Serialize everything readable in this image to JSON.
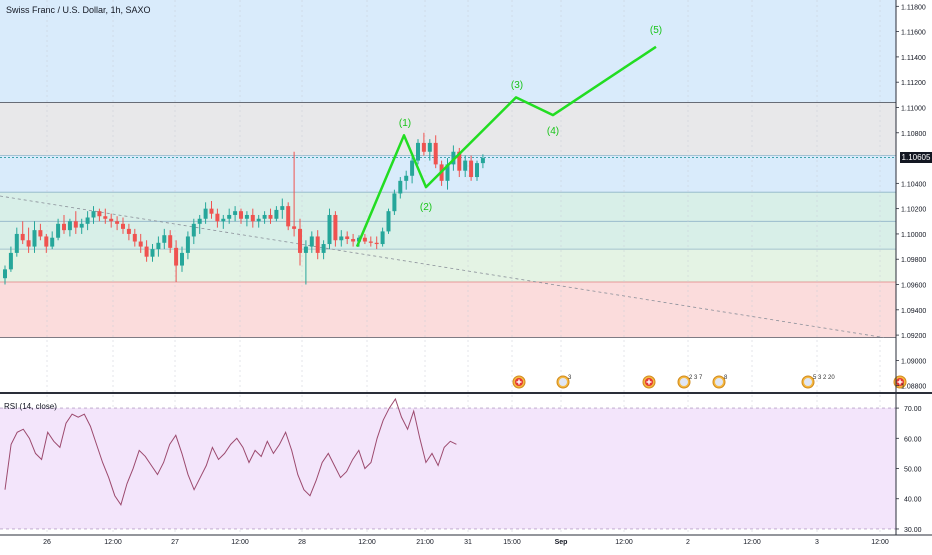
{
  "header": {
    "title": "Swiss Franc / U.S. Dollar, 1h, SAXO"
  },
  "rsi": {
    "title": "RSI (14, close)"
  },
  "price_axis": {
    "labels": [
      "1.11800",
      "1.11600",
      "1.11400",
      "1.11200",
      "1.11000",
      "1.10800",
      "1.10600",
      "1.10400",
      "1.10200",
      "1.10000",
      "1.09800",
      "1.09600",
      "1.09400",
      "1.09200",
      "1.09000",
      "1.08800"
    ],
    "last_price": "1.10605"
  },
  "rsi_axis": {
    "labels": [
      "70.00",
      "60.00",
      "50.00",
      "40.00",
      "30.00"
    ]
  },
  "time_axis": {
    "labels": [
      "26",
      "12:00",
      "27",
      "12:00",
      "28",
      "12:00",
      "21:00",
      "31",
      "15:00",
      "Sep",
      "12:00",
      "2",
      "12:00",
      "3",
      "12:00"
    ]
  },
  "colors": {
    "candle_up": "#26a69a",
    "candle_down": "#ef5350",
    "wave": "#22dd22",
    "zone_blue": "#d9ebfb",
    "zone_gray": "#e8e8ea",
    "zone_teal": "#d8efe8",
    "zone_green": "#e4f3e4",
    "zone_red": "#fbdcdc",
    "rsi_fill": "#f3e5fb",
    "rsi_line": "#9c4a6e"
  },
  "events": [
    {
      "icon": "swiss-flag-icon",
      "label": ""
    },
    {
      "icon": "us-flag-icon",
      "label": "3"
    },
    {
      "icon": "swiss-flag-icon",
      "label": ""
    },
    {
      "icon": "us-flag-icon",
      "label": "2 3 7"
    },
    {
      "icon": "us-flag-icon",
      "label": "8"
    },
    {
      "icon": "us-flag-icon",
      "label": "5 3 2 20"
    },
    {
      "icon": "swiss-flag-icon",
      "label": ""
    }
  ],
  "chart_data": {
    "type": "candlestick",
    "title": "Swiss Franc / U.S. Dollar, 1h, SAXO",
    "ylim": [
      1.0875,
      1.1185
    ],
    "x_range": [
      "Aug 25 ~16:00",
      "Sep 3 ~13:00"
    ],
    "time_labels": [
      "26",
      "12:00",
      "27",
      "12:00",
      "28",
      "12:00",
      "21:00",
      "31",
      "15:00",
      "Sep",
      "12:00",
      "2",
      "12:00",
      "3",
      "12:00"
    ],
    "candles": [
      [
        1.0965,
        1.0975,
        1.096,
        1.0972
      ],
      [
        1.0972,
        1.099,
        1.097,
        1.0985
      ],
      [
        1.0985,
        1.1005,
        1.0982,
        1.1
      ],
      [
        1.1,
        1.101,
        1.0992,
        1.0995
      ],
      [
        1.0995,
        1.1005,
        1.0985,
        1.099
      ],
      [
        1.099,
        1.101,
        1.0985,
        1.1003
      ],
      [
        1.1003,
        1.1008,
        1.0995,
        1.0998
      ],
      [
        1.0998,
        1.1,
        1.0985,
        1.099
      ],
      [
        1.099,
        1.1002,
        1.0988,
        1.0997
      ],
      [
        1.0997,
        1.1012,
        1.0995,
        1.1008
      ],
      [
        1.1008,
        1.1015,
        1.1,
        1.1003
      ],
      [
        1.1003,
        1.1012,
        1.0998,
        1.101
      ],
      [
        1.101,
        1.1018,
        1.1,
        1.1005
      ],
      [
        1.1005,
        1.1012,
        1.1,
        1.1008
      ],
      [
        1.1008,
        1.1018,
        1.1003,
        1.1013
      ],
      [
        1.1013,
        1.1022,
        1.1008,
        1.1018
      ],
      [
        1.1018,
        1.102,
        1.101,
        1.1014
      ],
      [
        1.1014,
        1.102,
        1.1008,
        1.1012
      ],
      [
        1.1012,
        1.1016,
        1.1005,
        1.101
      ],
      [
        1.101,
        1.1014,
        1.1003,
        1.1008
      ],
      [
        1.1008,
        1.1013,
        1.1,
        1.1004
      ],
      [
        1.1004,
        1.1008,
        1.0995,
        1.1
      ],
      [
        1.1,
        1.1004,
        1.099,
        1.0994
      ],
      [
        1.0994,
        1.1,
        1.0985,
        1.099
      ],
      [
        1.099,
        1.0995,
        1.0978,
        1.0982
      ],
      [
        1.0982,
        1.0992,
        1.0978,
        1.0988
      ],
      [
        1.0988,
        1.0998,
        1.0982,
        1.0993
      ],
      [
        1.0993,
        1.1004,
        1.0988,
        1.0999
      ],
      [
        1.0999,
        1.1003,
        1.0985,
        1.0989
      ],
      [
        1.0989,
        1.0995,
        1.0962,
        1.0975
      ],
      [
        1.0975,
        1.099,
        1.097,
        1.0985
      ],
      [
        1.0985,
        1.1002,
        1.098,
        1.0998
      ],
      [
        1.0998,
        1.1012,
        1.0992,
        1.1008
      ],
      [
        1.1008,
        1.1015,
        1.1,
        1.1012
      ],
      [
        1.1012,
        1.1025,
        1.1008,
        1.102
      ],
      [
        1.102,
        1.1026,
        1.1012,
        1.1016
      ],
      [
        1.1016,
        1.102,
        1.1005,
        1.101
      ],
      [
        1.101,
        1.1015,
        1.1004,
        1.1012
      ],
      [
        1.1012,
        1.102,
        1.1008,
        1.1015
      ],
      [
        1.1015,
        1.1022,
        1.101,
        1.1018
      ],
      [
        1.1018,
        1.102,
        1.1008,
        1.1012
      ],
      [
        1.1012,
        1.1018,
        1.1006,
        1.1015
      ],
      [
        1.1015,
        1.102,
        1.1005,
        1.101
      ],
      [
        1.101,
        1.1015,
        1.1005,
        1.1012
      ],
      [
        1.1012,
        1.1018,
        1.1008,
        1.1015
      ],
      [
        1.1015,
        1.102,
        1.1008,
        1.1012
      ],
      [
        1.1012,
        1.1022,
        1.101,
        1.1019
      ],
      [
        1.1019,
        1.1028,
        1.1012,
        1.1022
      ],
      [
        1.1022,
        1.1025,
        1.1003,
        1.1006
      ],
      [
        1.1006,
        1.1065,
        1.0998,
        1.1004
      ],
      [
        1.1004,
        1.1012,
        1.0975,
        1.0985
      ],
      [
        1.0985,
        1.0995,
        1.096,
        1.099
      ],
      [
        1.099,
        1.1002,
        1.0985,
        1.0998
      ],
      [
        1.0998,
        1.1003,
        1.098,
        1.0985
      ],
      [
        1.0985,
        1.0995,
        1.098,
        1.0992
      ],
      [
        1.0992,
        1.102,
        1.0988,
        1.1015
      ],
      [
        1.1015,
        1.1018,
        1.099,
        1.0995
      ],
      [
        1.0995,
        1.1003,
        1.099,
        1.0998
      ],
      [
        1.0998,
        1.1002,
        1.0992,
        1.0996
      ],
      [
        1.0996,
        1.1,
        1.099,
        1.0994
      ],
      [
        1.0994,
        1.0999,
        1.099,
        1.0997
      ],
      [
        1.0997,
        1.1,
        1.0992,
        1.0994
      ],
      [
        1.0994,
        1.0998,
        1.099,
        1.0993
      ],
      [
        1.0993,
        1.0998,
        1.0988,
        1.0992
      ],
      [
        1.0992,
        1.1005,
        1.099,
        1.1002
      ],
      [
        1.1002,
        1.102,
        1.1,
        1.1018
      ],
      [
        1.1018,
        1.1035,
        1.1015,
        1.1032
      ],
      [
        1.1032,
        1.1045,
        1.1028,
        1.1042
      ],
      [
        1.1042,
        1.105,
        1.1035,
        1.1046
      ],
      [
        1.1046,
        1.1062,
        1.104,
        1.1058
      ],
      [
        1.1058,
        1.1075,
        1.1055,
        1.1072
      ],
      [
        1.1072,
        1.108,
        1.1062,
        1.1065
      ],
      [
        1.1065,
        1.1075,
        1.1058,
        1.1072
      ],
      [
        1.1072,
        1.1078,
        1.1052,
        1.1055
      ],
      [
        1.1055,
        1.1058,
        1.1038,
        1.1042
      ],
      [
        1.1042,
        1.106,
        1.1035,
        1.1055
      ],
      [
        1.1055,
        1.107,
        1.105,
        1.1065
      ],
      [
        1.1065,
        1.1068,
        1.1045,
        1.105
      ],
      [
        1.105,
        1.1062,
        1.1045,
        1.1058
      ],
      [
        1.1058,
        1.1062,
        1.1042,
        1.1045
      ],
      [
        1.1045,
        1.1058,
        1.1042,
        1.1056
      ],
      [
        1.1056,
        1.1063,
        1.1052,
        1.106
      ]
    ],
    "wave_projection": {
      "points": [
        {
          "x": "28 ~22:00",
          "y": 1.099
        },
        {
          "x": "29 ~20:00",
          "y": 1.1078
        },
        {
          "x": "29 ~23:00",
          "y": 1.1037
        },
        {
          "x": "31 ~15:00",
          "y": 1.1108
        },
        {
          "x": "Sep ~01:00",
          "y": 1.1094
        },
        {
          "x": "2 ~06:00",
          "y": 1.1148
        }
      ],
      "labels": [
        "(1)",
        "(2)",
        "(3)",
        "(4)",
        "(5)"
      ]
    },
    "horizontal_levels": [
      1.1104,
      1.1062,
      1.1033,
      1.101,
      1.0988,
      1.0962,
      1.0918
    ],
    "zones": [
      {
        "from": 1.1104,
        "to": 1.1185,
        "color": "blue"
      },
      {
        "from": 1.1062,
        "to": 1.1104,
        "color": "gray"
      },
      {
        "from": 1.1033,
        "to": 1.1062,
        "color": "blue"
      },
      {
        "from": 1.0988,
        "to": 1.1033,
        "color": "teal"
      },
      {
        "from": 1.0962,
        "to": 1.0988,
        "color": "green"
      },
      {
        "from": 1.0918,
        "to": 1.0962,
        "color": "red"
      }
    ],
    "trendline": {
      "from": {
        "x": "Aug 25 ~16:00",
        "y": 1.103
      },
      "to": {
        "x": "Sep 3 ~13:00",
        "y": 1.0918
      },
      "style": "dotted"
    },
    "rsi_series": {
      "name": "RSI (14, close)",
      "ylim": [
        28,
        74
      ],
      "values": [
        43,
        58,
        62,
        63,
        60,
        55,
        53,
        62,
        59,
        57,
        65,
        68,
        67,
        68,
        64,
        58,
        52,
        47,
        41,
        38,
        45,
        50,
        56,
        54,
        51,
        48,
        52,
        58,
        61,
        55,
        48,
        43,
        47,
        51,
        57,
        53,
        55,
        58,
        60,
        57,
        52,
        56,
        54,
        59,
        55,
        58,
        62,
        56,
        48,
        43,
        41,
        46,
        52,
        55,
        51,
        47,
        49,
        53,
        56,
        50,
        52,
        60,
        66,
        70,
        73,
        67,
        63,
        69,
        60,
        52,
        55,
        51,
        57,
        59,
        58
      ]
    }
  }
}
